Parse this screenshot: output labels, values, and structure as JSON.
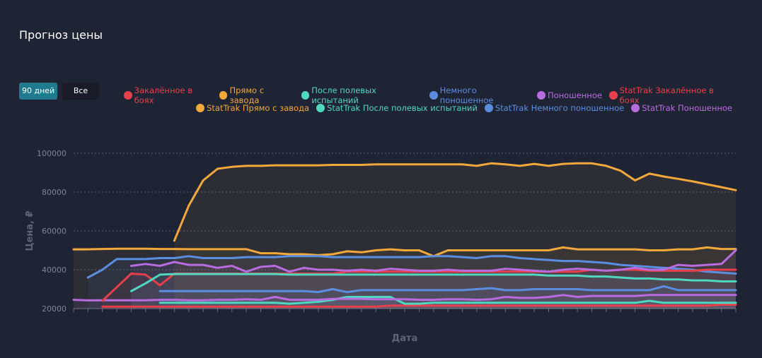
{
  "title": "Прогноз цены",
  "buttons": {
    "days90": "90 дней",
    "all": "Все"
  },
  "chart_data": {
    "type": "line",
    "title": "Прогноз цены",
    "xlabel": "Дата",
    "ylabel": "Цена, ₽",
    "ylim": [
      20000,
      100000
    ],
    "yticks": [
      "20000",
      "40000",
      "60000",
      "80000",
      "100000"
    ],
    "grid": true,
    "legend": "top-right",
    "n_points": 47,
    "series": [
      {
        "name": "Закалённое в боях",
        "color": "#e8404a",
        "values": [
          null,
          null,
          21000,
          21000,
          21000,
          21000,
          21000,
          21000,
          21000,
          21000,
          21000,
          21000,
          21000,
          21000,
          21000,
          21000,
          21000,
          21000,
          21000,
          21000,
          21000,
          21000,
          21500,
          21500,
          21500,
          21500,
          21500,
          21500,
          21500,
          21500,
          21500,
          21500,
          21500,
          21500,
          21500,
          21500,
          21500,
          21500,
          21500,
          21500,
          21500,
          21500,
          21500,
          21500,
          21500,
          22000,
          22000
        ]
      },
      {
        "name": "Прямо с завода",
        "color": "#f2a83a",
        "values": [
          50500,
          50500,
          50700,
          50800,
          50800,
          50800,
          50700,
          50700,
          50600,
          50600,
          50600,
          50600,
          50600,
          48500,
          48500,
          48000,
          48000,
          47500,
          48000,
          49500,
          49000,
          50000,
          50500,
          50000,
          50000,
          47000,
          50000,
          50000,
          50000,
          50000,
          50000,
          50000,
          50000,
          50000,
          51500,
          50500,
          50500,
          50500,
          50500,
          50500,
          50000,
          50000,
          50500,
          50500,
          51500,
          50700,
          50700
        ]
      },
      {
        "name": "После полевых испытаний",
        "color": "#4fd8c0",
        "values": [
          null,
          null,
          null,
          null,
          null,
          null,
          23000,
          23000,
          23000,
          23000,
          23000,
          23000,
          23000,
          23000,
          23000,
          22500,
          23000,
          23500,
          24500,
          26000,
          26000,
          26000,
          26000,
          22500,
          22500,
          23000,
          23000,
          23000,
          23000,
          23000,
          23000,
          23000,
          23000,
          23000,
          23000,
          23000,
          23000,
          23000,
          23000,
          23000,
          24000,
          23000,
          23000,
          23000,
          23000,
          23000,
          23000
        ]
      },
      {
        "name": "Немного поношенное",
        "color": "#5b8ee0",
        "values": [
          null,
          36000,
          40000,
          45500,
          45500,
          45500,
          46000,
          46000,
          47000,
          46000,
          46000,
          46000,
          46500,
          46500,
          46500,
          47000,
          47000,
          47000,
          46500,
          46500,
          46500,
          46500,
          46500,
          46500,
          46500,
          47000,
          47000,
          46500,
          46000,
          47000,
          47000,
          46000,
          45500,
          45000,
          44500,
          44500,
          44000,
          43500,
          42500,
          42000,
          41500,
          41000,
          40500,
          40000,
          39000,
          38500,
          38000
        ]
      },
      {
        "name": "Поношенное",
        "color": "#b96be0",
        "values": [
          24500,
          24200,
          24300,
          24300,
          24300,
          24300,
          24500,
          24500,
          24300,
          24300,
          24500,
          24500,
          24800,
          24500,
          26000,
          24500,
          24500,
          24500,
          25000,
          25000,
          25000,
          24800,
          24800,
          24800,
          24500,
          24500,
          24800,
          24800,
          24500,
          24800,
          26000,
          25500,
          25500,
          26000,
          27000,
          26000,
          26500,
          26500,
          26500,
          26500,
          27000,
          27000,
          27000,
          27000,
          27000,
          27000,
          27000
        ]
      },
      {
        "name": "StatTrak Закалённое в боях",
        "color": "#e8404a",
        "values": [
          null,
          null,
          24000,
          31000,
          38000,
          37500,
          32000,
          38000,
          38000,
          38000,
          38000,
          38000,
          38000,
          38000,
          38000,
          38000,
          38000,
          38000,
          38000,
          39000,
          39000,
          39000,
          39000,
          39000,
          39000,
          39000,
          39000,
          39000,
          39000,
          39000,
          39000,
          39000,
          39000,
          39000,
          39000,
          39000,
          40000,
          39500,
          40000,
          40000,
          39500,
          39500,
          39500,
          39500,
          40000,
          40000,
          40000
        ]
      },
      {
        "name": "StatTrak Прямо с завода",
        "color": "#f2a83a",
        "values": [
          null,
          null,
          null,
          null,
          null,
          null,
          null,
          55000,
          73000,
          86000,
          92000,
          93000,
          93500,
          93500,
          93800,
          93800,
          93800,
          93800,
          94000,
          94000,
          94000,
          94300,
          94300,
          94300,
          94300,
          94300,
          94300,
          94300,
          93500,
          94800,
          94300,
          93500,
          94500,
          93500,
          94500,
          94800,
          94800,
          93500,
          91000,
          86000,
          89500,
          88000,
          86800,
          85500,
          84000,
          82500,
          81000
        ]
      },
      {
        "name": "StatTrak После полевых испытаний",
        "color": "#4fd8c0",
        "values": [
          null,
          null,
          null,
          null,
          29000,
          33000,
          37500,
          37800,
          37800,
          37800,
          37800,
          37800,
          37800,
          37800,
          37800,
          37500,
          37500,
          37500,
          37500,
          37500,
          37500,
          37500,
          37500,
          37500,
          37500,
          37500,
          37500,
          37500,
          37500,
          37500,
          37500,
          37500,
          37500,
          37000,
          37000,
          37000,
          36500,
          36500,
          36000,
          35500,
          35500,
          35000,
          35000,
          34500,
          34500,
          34000,
          34000
        ]
      },
      {
        "name": "StatTrak Немного поношенное",
        "color": "#5b8ee0",
        "values": [
          null,
          null,
          null,
          null,
          null,
          null,
          29000,
          29000,
          29000,
          29000,
          29000,
          29000,
          29000,
          29000,
          29000,
          29000,
          29000,
          28500,
          30000,
          28500,
          29500,
          29500,
          29500,
          29500,
          29500,
          29500,
          29500,
          29500,
          30000,
          30500,
          29500,
          29500,
          30000,
          30000,
          30000,
          30000,
          29500,
          29500,
          29500,
          29500,
          29500,
          31500,
          29500,
          29500,
          29500,
          29500,
          29500
        ]
      },
      {
        "name": "StatTrak Поношенное",
        "color": "#b96be0",
        "values": [
          null,
          null,
          null,
          null,
          42000,
          43000,
          42000,
          44000,
          42500,
          42500,
          41000,
          42000,
          39000,
          41500,
          42000,
          39000,
          41000,
          40000,
          40000,
          39500,
          40000,
          39500,
          40500,
          40000,
          39500,
          39500,
          40000,
          39500,
          39500,
          39500,
          40500,
          40000,
          39500,
          39000,
          40000,
          40500,
          40000,
          39500,
          40000,
          41000,
          40000,
          40000,
          42500,
          42000,
          42500,
          43000,
          50000
        ]
      }
    ]
  }
}
